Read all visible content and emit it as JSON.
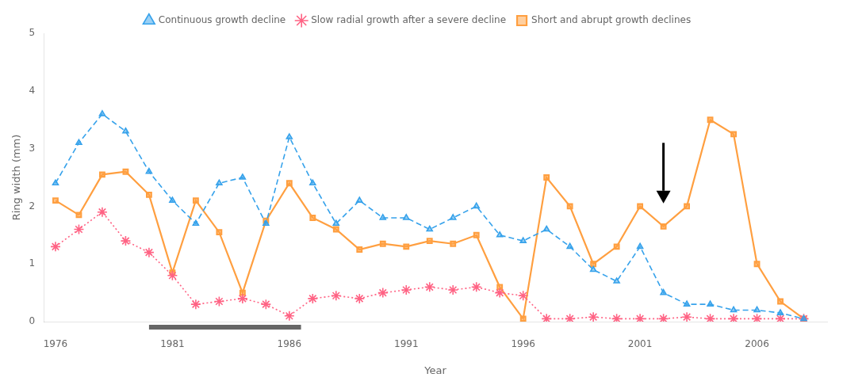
{
  "chart_data": {
    "type": "line",
    "xlabel": "Year",
    "ylabel": "Ring width (mm)",
    "x": [
      1976,
      1977,
      1978,
      1979,
      1980,
      1981,
      1982,
      1983,
      1984,
      1985,
      1986,
      1987,
      1988,
      1989,
      1990,
      1991,
      1992,
      1993,
      1994,
      1995,
      1996,
      1997,
      1998,
      1999,
      2000,
      2001,
      2002,
      2003,
      2004,
      2005,
      2006,
      2007,
      2008
    ],
    "series": [
      {
        "name": "Continuous growth decline",
        "marker": "triangle",
        "line_style": "dashed",
        "values": [
          2.4,
          3.1,
          3.6,
          3.3,
          2.6,
          2.1,
          1.7,
          2.4,
          2.5,
          1.7,
          3.2,
          2.4,
          1.7,
          2.1,
          1.8,
          1.8,
          1.6,
          1.8,
          2.0,
          1.5,
          1.4,
          1.6,
          1.3,
          0.9,
          0.7,
          1.3,
          0.5,
          0.3,
          0.3,
          0.2,
          0.2,
          0.15,
          0.05
        ]
      },
      {
        "name": "Slow radial growth after a severe decline",
        "marker": "star",
        "line_style": "dotted",
        "values": [
          1.3,
          1.6,
          1.9,
          1.4,
          1.2,
          0.8,
          0.3,
          0.35,
          0.4,
          0.3,
          0.1,
          0.4,
          0.45,
          0.4,
          0.5,
          0.55,
          0.6,
          0.55,
          0.6,
          0.5,
          0.45,
          0.05,
          0.05,
          0.08,
          0.05,
          0.05,
          0.05,
          0.08,
          0.05,
          0.05,
          0.05,
          0.05,
          0.05
        ]
      },
      {
        "name": "Short and abrupt growth declines",
        "marker": "square",
        "line_style": "solid",
        "values": [
          2.1,
          1.85,
          2.55,
          2.6,
          2.2,
          0.85,
          2.1,
          1.55,
          0.5,
          1.75,
          2.4,
          1.8,
          1.6,
          1.25,
          1.35,
          1.3,
          1.4,
          1.35,
          1.5,
          0.6,
          0.05,
          2.5,
          2.0,
          1.0,
          1.3,
          2.0,
          1.65,
          2.0,
          3.5,
          3.25,
          1.0,
          0.35,
          0.05
        ]
      }
    ],
    "xlim": [
      1975.5,
      2009
    ],
    "ylim": [
      0,
      5
    ],
    "xticks": [
      1976,
      1981,
      1986,
      1991,
      1996,
      2001,
      2006
    ],
    "yticks": [
      0,
      1,
      2,
      3,
      4,
      5
    ],
    "grid": false,
    "legend": "top",
    "annotations": [
      {
        "type": "arrow",
        "x": 2002.0,
        "y_start": 3.1,
        "y_end": 2.05,
        "color": "#000000"
      },
      {
        "type": "span",
        "x_start": 1980,
        "x_end": 1986.5,
        "color": "#666666"
      }
    ]
  }
}
